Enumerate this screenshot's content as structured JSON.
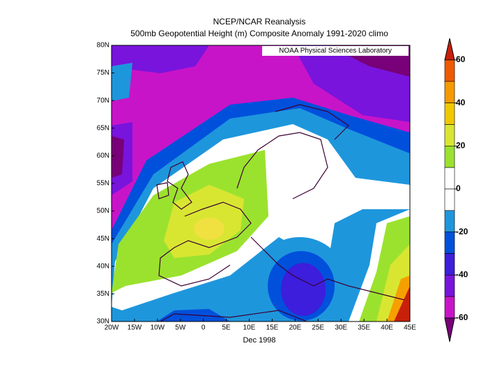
{
  "title": "NCEP/NCAR Reanalysis",
  "subtitle": "500mb Geopotential Height (m) Composite Anomaly 1991-2020 climo",
  "credit": "NOAA Physical Sciences Laboratory",
  "date": "Dec 1998",
  "map": {
    "lat_labels": [
      "80N",
      "75N",
      "70N",
      "65N",
      "60N",
      "55N",
      "50N",
      "45N",
      "40N",
      "35N",
      "30N"
    ],
    "lon_labels": [
      "20W",
      "15W",
      "10W",
      "5W",
      "0",
      "5E",
      "10E",
      "15E",
      "20E",
      "25E",
      "30E",
      "35E",
      "40E",
      "45E"
    ]
  },
  "colorbar": {
    "ticks": [
      60,
      40,
      20,
      0,
      -20,
      -40,
      -60
    ],
    "colors": [
      "#c8200a",
      "#ee5a00",
      "#f59a00",
      "#f0c800",
      "#d8e632",
      "#9be22e",
      "#ffffff",
      "#ffffff",
      "#1e96dc",
      "#0050dc",
      "#3c1edc",
      "#7814dc",
      "#c814c8",
      "#780078"
    ]
  }
}
